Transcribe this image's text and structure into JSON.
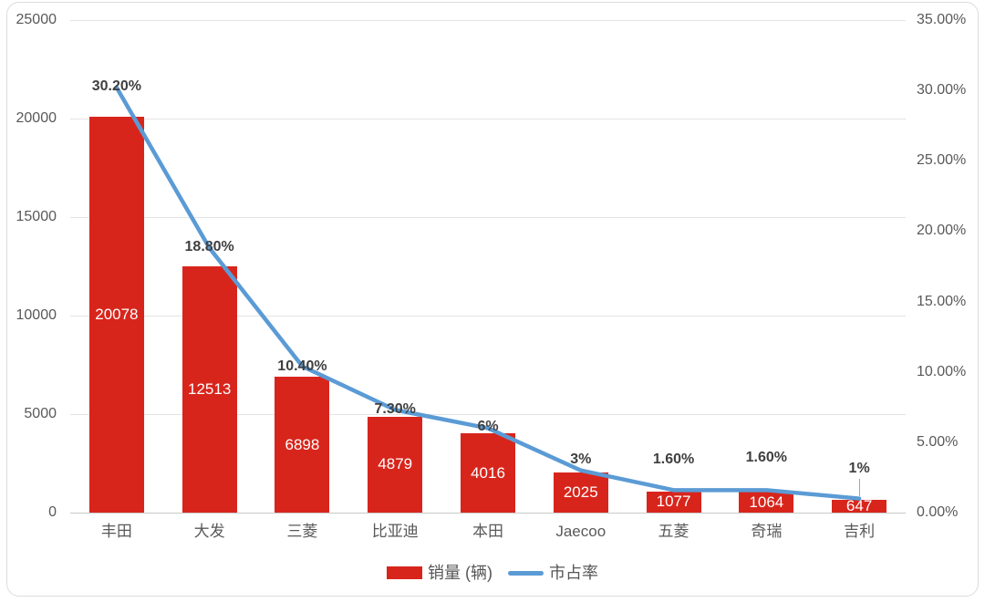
{
  "chart_data": {
    "type": "bar",
    "subtype": "combo-bar-line",
    "categories": [
      "丰田",
      "大发",
      "三菱",
      "比亚迪",
      "本田",
      "Jaecoo",
      "五菱",
      "奇瑞",
      "吉利"
    ],
    "series": [
      {
        "name": "销量 (辆)",
        "type": "bar",
        "axis": "left",
        "color": "#d8251c",
        "values": [
          20078,
          12513,
          6898,
          4879,
          4016,
          2025,
          1077,
          1064,
          647
        ]
      },
      {
        "name": "市占率",
        "type": "line",
        "axis": "right",
        "color": "#5b9bd5",
        "values": [
          30.2,
          18.8,
          10.4,
          7.3,
          6,
          3,
          1.6,
          1.6,
          1
        ],
        "point_labels": [
          "30.20%",
          "18.80%",
          "10.40%",
          "7.30%",
          "6%",
          "3%",
          "1.60%",
          "1.60%",
          "1%"
        ]
      }
    ],
    "left_axis": {
      "min": 0,
      "max": 25000,
      "step": 5000,
      "tick_labels": [
        "25000",
        "20000",
        "15000",
        "10000",
        "5000",
        "0"
      ]
    },
    "right_axis": {
      "min": 0,
      "max": 35,
      "step": 5,
      "tick_labels": [
        "35.00%",
        "30.00%",
        "25.00%",
        "20.00%",
        "15.00%",
        "10.00%",
        "5.00%",
        "0.00%"
      ]
    },
    "grid": true,
    "legend_position": "bottom",
    "title": ""
  },
  "legend": {
    "sales_label": "销量 (辆)",
    "share_label": "市占率"
  },
  "colors": {
    "bar": "#d8251c",
    "line": "#5b9bd5",
    "axis_text": "#595959",
    "gridline": "#e4e4e4",
    "border": "#dcdcdc",
    "point_label_text": "#3f3f3f",
    "bar_label_text": "#ffffff"
  }
}
